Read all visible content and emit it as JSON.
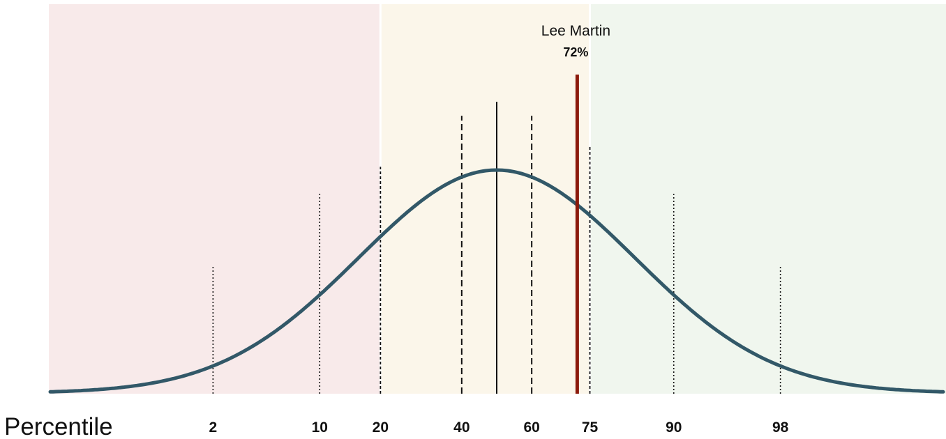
{
  "chart_data": {
    "type": "area",
    "xlabel": "Percentile",
    "percentile_ticks": [
      {
        "label": "2",
        "value": 2,
        "style": "dotted"
      },
      {
        "label": "10",
        "value": 10,
        "style": "dotted"
      },
      {
        "label": "20",
        "value": 20,
        "style": "short-dashed"
      },
      {
        "label": "40",
        "value": 40,
        "style": "dashed"
      },
      {
        "label": "60",
        "value": 60,
        "style": "dashed"
      },
      {
        "label": "75",
        "value": 75,
        "style": "short-dashed"
      },
      {
        "label": "90",
        "value": 90,
        "style": "dotted"
      },
      {
        "label": "98",
        "value": 98,
        "style": "dotted"
      }
    ],
    "median_line": {
      "value": 50,
      "style": "solid"
    },
    "bands": [
      {
        "from": 0,
        "to": 20,
        "color": "#f8eaea"
      },
      {
        "from": 20,
        "to": 75,
        "color": "#fbf6ea"
      },
      {
        "from": 75,
        "to": 100,
        "color": "#f0f6ee"
      }
    ],
    "marker": {
      "name": "Lee Martin",
      "label": "72%",
      "value": 72,
      "color": "#8b1a0c"
    },
    "curve_color": "#325868",
    "grid": false
  }
}
